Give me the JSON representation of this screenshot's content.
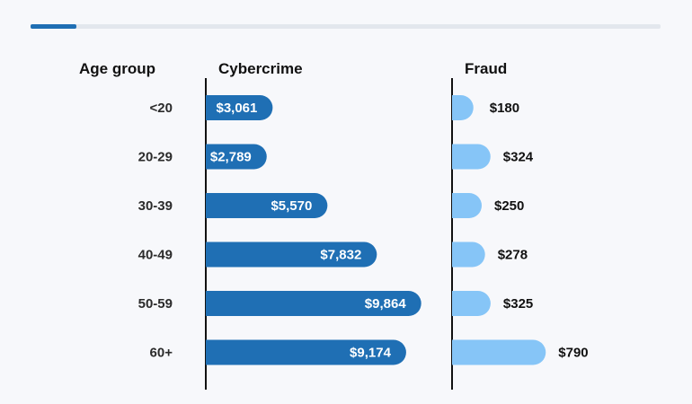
{
  "chart_data": {
    "type": "bar",
    "orientation": "horizontal",
    "category_header": "Age group",
    "categories": [
      "<20",
      "20-29",
      "30-39",
      "40-49",
      "50-59",
      "60+"
    ],
    "series": [
      {
        "name": "Cybercrime",
        "values": [
          3061,
          2789,
          5570,
          7832,
          9864,
          9174
        ],
        "labels": [
          "$3,061",
          "$2,789",
          "$5,570",
          "$7,832",
          "$9,864",
          "$9,174"
        ],
        "color": "#1f6fb4"
      },
      {
        "name": "Fraud",
        "values": [
          180,
          324,
          250,
          278,
          325,
          790
        ],
        "labels": [
          "$180",
          "$324",
          "$250",
          "$278",
          "$325",
          "$790"
        ],
        "color": "#86c5f7"
      }
    ],
    "xlim": [
      0,
      10000
    ],
    "fraud_xlim": [
      0,
      1000
    ],
    "grid": false,
    "legend": "column headers"
  }
}
